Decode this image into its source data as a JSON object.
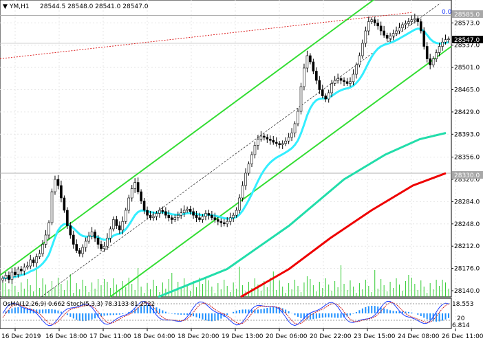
{
  "header": {
    "symbol": "YM,H1",
    "ohlc": "28544.5 28548.0 28541.0 28547.0"
  },
  "price_axis": {
    "labels": [
      "28573.0",
      "28537.0",
      "28501.0",
      "28465.0",
      "28429.0",
      "28393.0",
      "28356.0",
      "28320.0",
      "28284.0",
      "28248.0",
      "28212.0",
      "28176.0",
      "28140.0"
    ],
    "label_values": [
      28573,
      28537,
      28501,
      28465,
      28429,
      28393,
      28356,
      28320,
      28284,
      28248,
      28212,
      28176,
      28140
    ],
    "current_price": "28547.0",
    "level_high": "28585.0",
    "level_low": "28330.0",
    "corner_value": "0.0"
  },
  "time_axis": {
    "labels": [
      "16 Dec 2019",
      "16 Dec 18:00",
      "17 Dec 11:00",
      "18 Dec 04:00",
      "18 Dec 20:00",
      "19 Dec 13:00",
      "20 Dec 06:00",
      "20 Dec 22:00",
      "23 Dec 15:00",
      "24 Dec 08:00",
      "26 Dec 11:00"
    ]
  },
  "oscillator": {
    "title": "OsMA(12,26,9) 0.662  Stoch(5,3,3) 78.3133 81.2522",
    "labels": [
      "18.553",
      "6.814",
      "20"
    ]
  },
  "colors": {
    "channel": "#33dd33",
    "ma_fast": "#33eeff",
    "ma_mid": "#22ddaa",
    "ma_slow": "#ee0000",
    "candles": "#000000",
    "volume": "#33cc33",
    "osma": "#1e90ff",
    "stoch_main": "#1e3cff",
    "stoch_signal": "#cc2222"
  },
  "chart_data": {
    "type": "candlestick",
    "symbol": "YM",
    "timeframe": "H1",
    "ylim": [
      28130,
      28610
    ],
    "close": [
      28160,
      28165,
      28158,
      28170,
      28166,
      28175,
      28172,
      28178,
      28180,
      28190,
      28185,
      28195,
      28200,
      28215,
      28230,
      28250,
      28300,
      28320,
      28310,
      28290,
      28270,
      28245,
      28230,
      28215,
      28205,
      28200,
      28210,
      28220,
      28228,
      28235,
      28225,
      28215,
      28208,
      28212,
      28225,
      28240,
      28255,
      28245,
      28238,
      28252,
      28270,
      28290,
      28305,
      28315,
      28300,
      28285,
      28270,
      28262,
      28258,
      28260,
      28265,
      28270,
      28268,
      28262,
      28258,
      28255,
      28258,
      28262,
      28266,
      28270,
      28272,
      28268,
      28262,
      28258,
      28255,
      28260,
      28265,
      28262,
      28258,
      28255,
      28252,
      28250,
      28248,
      28252,
      28258,
      28262,
      28270,
      28290,
      28310,
      28330,
      28345,
      28360,
      28375,
      28385,
      28390,
      28388,
      28385,
      28383,
      28380,
      28378,
      28376,
      28378,
      28382,
      28388,
      28395,
      28410,
      28430,
      28470,
      28500,
      28520,
      28510,
      28495,
      28480,
      28465,
      28455,
      28450,
      28460,
      28475,
      28480,
      28483,
      28480,
      28478,
      28475,
      28478,
      28490,
      28505,
      28520,
      28540,
      28560,
      28575,
      28578,
      28573,
      28568,
      28560,
      28553,
      28548,
      28552,
      28556,
      28560,
      28565,
      28570,
      28572,
      28575,
      28578,
      28580,
      28575,
      28560,
      28535,
      28515,
      28505,
      28515,
      28525,
      28535,
      28542,
      28546,
      28547
    ]
  }
}
